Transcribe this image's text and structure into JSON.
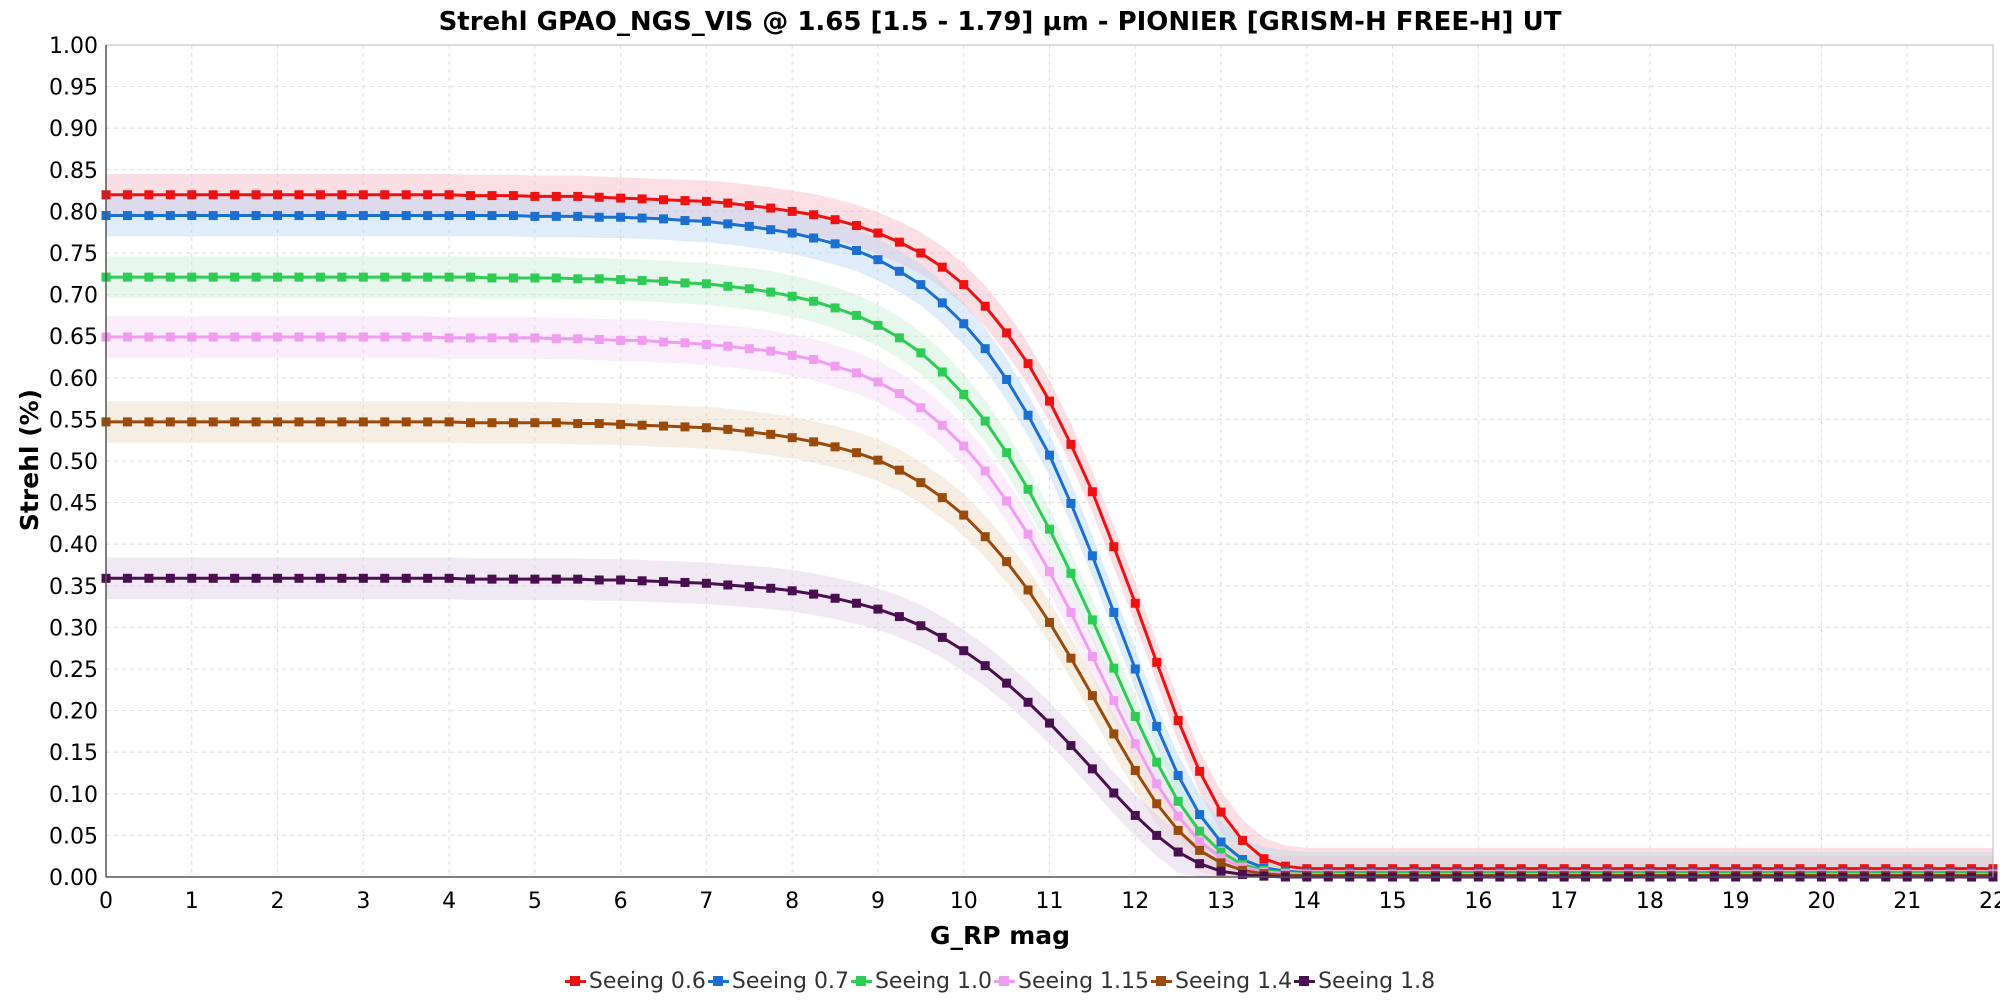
{
  "chart_data": {
    "type": "line",
    "title": "Strehl GPAO_NGS_VIS @ 1.65 [1.5 - 1.79] µm - PIONIER [GRISM-H FREE-H] UT",
    "xlabel": "G_RP mag",
    "ylabel": "Strehl (%)",
    "xlim": [
      0,
      22
    ],
    "ylim": [
      0,
      1.0
    ],
    "x_ticks": [
      "0",
      "1",
      "2",
      "3",
      "4",
      "5",
      "6",
      "7",
      "8",
      "9",
      "10",
      "11",
      "12",
      "13",
      "14",
      "15",
      "16",
      "17",
      "18",
      "19",
      "20",
      "21",
      "22"
    ],
    "y_ticks": [
      "0.00",
      "0.05",
      "0.10",
      "0.15",
      "0.20",
      "0.25",
      "0.30",
      "0.35",
      "0.40",
      "0.45",
      "0.50",
      "0.55",
      "0.60",
      "0.65",
      "0.70",
      "0.75",
      "0.80",
      "0.85",
      "0.90",
      "0.95",
      "1.00"
    ],
    "grid": true,
    "legend_position": "bottom-center",
    "marker": "square",
    "x": [
      0,
      0.25,
      0.5,
      0.75,
      1,
      1.25,
      1.5,
      1.75,
      2,
      2.25,
      2.5,
      2.75,
      3,
      3.25,
      3.5,
      3.75,
      4,
      4.25,
      4.5,
      4.75,
      5,
      5.25,
      5.5,
      5.75,
      6,
      6.25,
      6.5,
      6.75,
      7,
      7.25,
      7.5,
      7.75,
      8,
      8.25,
      8.5,
      8.75,
      9,
      9.25,
      9.5,
      9.75,
      10,
      10.25,
      10.5,
      10.75,
      11,
      11.25,
      11.5,
      11.75,
      12,
      12.25,
      12.5,
      12.75,
      13,
      13.25,
      13.5,
      13.75,
      14,
      14.25,
      14.5,
      14.75,
      15,
      15.25,
      15.5,
      15.75,
      16,
      16.25,
      16.5,
      16.75,
      17,
      17.25,
      17.5,
      17.75,
      18,
      18.25,
      18.5,
      18.75,
      19,
      19.25,
      19.5,
      19.75,
      20,
      20.25,
      20.5,
      20.75,
      21,
      21.25,
      21.5,
      21.75,
      22
    ],
    "series": [
      {
        "name": "Seeing 0.6",
        "color": "#ee1111",
        "band_color": "#f7b8c4",
        "values": [
          0.82,
          0.82,
          0.82,
          0.82,
          0.82,
          0.82,
          0.82,
          0.82,
          0.82,
          0.82,
          0.82,
          0.82,
          0.82,
          0.82,
          0.82,
          0.82,
          0.82,
          0.819,
          0.819,
          0.819,
          0.818,
          0.818,
          0.818,
          0.817,
          0.816,
          0.815,
          0.814,
          0.813,
          0.812,
          0.81,
          0.807,
          0.804,
          0.8,
          0.796,
          0.79,
          0.783,
          0.774,
          0.763,
          0.75,
          0.733,
          0.712,
          0.686,
          0.654,
          0.617,
          0.572,
          0.52,
          0.463,
          0.397,
          0.329,
          0.258,
          0.188,
          0.127,
          0.078,
          0.044,
          0.022,
          0.013,
          0.01,
          0.01,
          0.01,
          0.01,
          0.01,
          0.01,
          0.01,
          0.01,
          0.01,
          0.01,
          0.01,
          0.01,
          0.01,
          0.01,
          0.01,
          0.01,
          0.01,
          0.01,
          0.01,
          0.01,
          0.01,
          0.01,
          0.01,
          0.01,
          0.01,
          0.01,
          0.01,
          0.01,
          0.01,
          0.01,
          0.01,
          0.01,
          0.01
        ]
      },
      {
        "name": "Seeing 0.7",
        "color": "#1a6fd0",
        "band_color": "#b9d6f4",
        "values": [
          0.795,
          0.795,
          0.795,
          0.795,
          0.795,
          0.795,
          0.795,
          0.795,
          0.795,
          0.795,
          0.795,
          0.795,
          0.795,
          0.795,
          0.795,
          0.795,
          0.795,
          0.795,
          0.795,
          0.795,
          0.794,
          0.794,
          0.794,
          0.793,
          0.793,
          0.792,
          0.791,
          0.789,
          0.788,
          0.785,
          0.782,
          0.778,
          0.774,
          0.768,
          0.761,
          0.753,
          0.742,
          0.728,
          0.712,
          0.69,
          0.665,
          0.635,
          0.598,
          0.555,
          0.507,
          0.449,
          0.386,
          0.318,
          0.25,
          0.181,
          0.122,
          0.075,
          0.042,
          0.021,
          0.011,
          0.007,
          0.005,
          0.005,
          0.005,
          0.005,
          0.005,
          0.005,
          0.005,
          0.005,
          0.005,
          0.005,
          0.005,
          0.005,
          0.005,
          0.005,
          0.005,
          0.005,
          0.005,
          0.005,
          0.005,
          0.005,
          0.005,
          0.005,
          0.005,
          0.005,
          0.005,
          0.005,
          0.005,
          0.005,
          0.005,
          0.005,
          0.005,
          0.005,
          0.005
        ]
      },
      {
        "name": "Seeing 1.0",
        "color": "#2ecc55",
        "band_color": "#c6f0d2",
        "values": [
          0.721,
          0.721,
          0.721,
          0.721,
          0.721,
          0.721,
          0.721,
          0.721,
          0.721,
          0.721,
          0.721,
          0.721,
          0.721,
          0.721,
          0.721,
          0.721,
          0.721,
          0.721,
          0.72,
          0.72,
          0.72,
          0.72,
          0.719,
          0.719,
          0.718,
          0.717,
          0.716,
          0.714,
          0.713,
          0.71,
          0.707,
          0.703,
          0.698,
          0.692,
          0.684,
          0.675,
          0.663,
          0.648,
          0.63,
          0.607,
          0.58,
          0.548,
          0.51,
          0.466,
          0.418,
          0.365,
          0.309,
          0.251,
          0.193,
          0.138,
          0.091,
          0.055,
          0.03,
          0.015,
          0.008,
          0.005,
          0.004,
          0.004,
          0.004,
          0.004,
          0.004,
          0.004,
          0.004,
          0.004,
          0.004,
          0.004,
          0.004,
          0.004,
          0.004,
          0.004,
          0.004,
          0.004,
          0.004,
          0.004,
          0.004,
          0.004,
          0.004,
          0.004,
          0.004,
          0.004,
          0.004,
          0.004,
          0.004,
          0.004,
          0.004,
          0.004,
          0.004,
          0.004,
          0.004
        ]
      },
      {
        "name": "Seeing 1.15",
        "color": "#f09cf0",
        "band_color": "#f7d6f7",
        "values": [
          0.649,
          0.649,
          0.649,
          0.649,
          0.649,
          0.649,
          0.649,
          0.649,
          0.649,
          0.649,
          0.649,
          0.649,
          0.649,
          0.649,
          0.649,
          0.649,
          0.648,
          0.648,
          0.648,
          0.648,
          0.648,
          0.647,
          0.647,
          0.646,
          0.645,
          0.645,
          0.643,
          0.642,
          0.64,
          0.638,
          0.635,
          0.632,
          0.627,
          0.622,
          0.614,
          0.606,
          0.595,
          0.581,
          0.564,
          0.543,
          0.518,
          0.488,
          0.452,
          0.412,
          0.367,
          0.318,
          0.265,
          0.212,
          0.16,
          0.112,
          0.073,
          0.043,
          0.023,
          0.012,
          0.006,
          0.004,
          0.003,
          0.003,
          0.003,
          0.003,
          0.003,
          0.003,
          0.003,
          0.003,
          0.003,
          0.003,
          0.003,
          0.003,
          0.003,
          0.003,
          0.003,
          0.003,
          0.003,
          0.003,
          0.003,
          0.003,
          0.003,
          0.003,
          0.003,
          0.003,
          0.003,
          0.003,
          0.003,
          0.003,
          0.003,
          0.003,
          0.003,
          0.003,
          0.003
        ]
      },
      {
        "name": "Seeing 1.4",
        "color": "#9a4a0a",
        "band_color": "#ecd6c2",
        "values": [
          0.547,
          0.547,
          0.547,
          0.547,
          0.547,
          0.547,
          0.547,
          0.547,
          0.547,
          0.547,
          0.547,
          0.547,
          0.547,
          0.547,
          0.547,
          0.547,
          0.547,
          0.546,
          0.546,
          0.546,
          0.546,
          0.546,
          0.545,
          0.545,
          0.544,
          0.543,
          0.542,
          0.541,
          0.54,
          0.538,
          0.535,
          0.532,
          0.528,
          0.523,
          0.517,
          0.51,
          0.501,
          0.489,
          0.474,
          0.456,
          0.435,
          0.409,
          0.379,
          0.345,
          0.306,
          0.263,
          0.218,
          0.172,
          0.128,
          0.088,
          0.056,
          0.032,
          0.017,
          0.008,
          0.004,
          0.002,
          0.002,
          0.002,
          0.002,
          0.002,
          0.002,
          0.002,
          0.002,
          0.002,
          0.002,
          0.002,
          0.002,
          0.002,
          0.002,
          0.002,
          0.002,
          0.002,
          0.002,
          0.002,
          0.002,
          0.002,
          0.002,
          0.002,
          0.002,
          0.002,
          0.002,
          0.002,
          0.002,
          0.002,
          0.002,
          0.002,
          0.002,
          0.002,
          0.002
        ]
      },
      {
        "name": "Seeing 1.8",
        "color": "#4a0f50",
        "band_color": "#ddcce4",
        "values": [
          0.359,
          0.359,
          0.359,
          0.359,
          0.359,
          0.359,
          0.359,
          0.359,
          0.359,
          0.359,
          0.359,
          0.359,
          0.359,
          0.359,
          0.359,
          0.359,
          0.359,
          0.358,
          0.358,
          0.358,
          0.358,
          0.358,
          0.358,
          0.357,
          0.357,
          0.356,
          0.355,
          0.354,
          0.353,
          0.351,
          0.349,
          0.347,
          0.344,
          0.34,
          0.335,
          0.329,
          0.322,
          0.313,
          0.302,
          0.288,
          0.272,
          0.254,
          0.233,
          0.21,
          0.185,
          0.158,
          0.13,
          0.101,
          0.074,
          0.05,
          0.03,
          0.016,
          0.007,
          0.003,
          0.001,
          0.0,
          0.0,
          0.0,
          0.0,
          0.0,
          0.0,
          0.0,
          0.0,
          0.0,
          0.0,
          0.0,
          0.0,
          0.0,
          0.0,
          0.0,
          0.0,
          0.0,
          0.0,
          0.0,
          0.0,
          0.0,
          0.0,
          0.0,
          0.0,
          0.0,
          0.0,
          0.0,
          0.0,
          0.0,
          0.0,
          0.0,
          0.0,
          0.0,
          0.0
        ]
      }
    ]
  }
}
